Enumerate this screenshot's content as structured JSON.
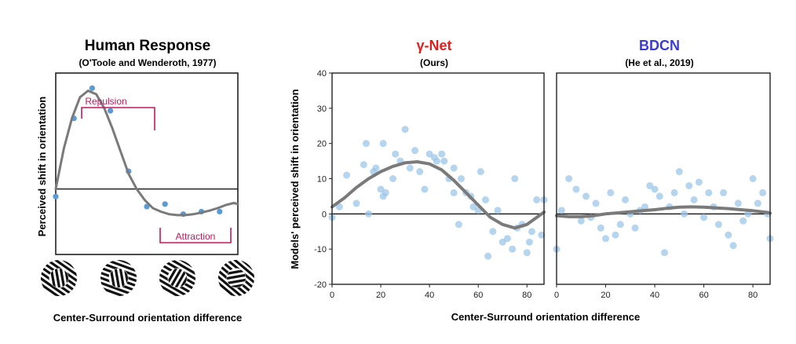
{
  "colors": {
    "gamma_title": "#e0201e",
    "bdcn_title": "#3b3bd6",
    "bracket": "#c2185b",
    "points_left": "#5b9bd5",
    "points_right": "#9cc5e8",
    "curve": "#7a7a7a"
  },
  "left_panel": {
    "title": "Human Response",
    "subtitle": "(O'Toole and Wenderoth, 1977)",
    "ylabel": "Perceived shift in orientation",
    "xlabel": "Center-Surround orientation difference",
    "repulsion_label": "Repulsion",
    "attraction_label": "Attraction",
    "stimulus_icons": [
      "stimulus-icon-small-difference",
      "stimulus-icon-medium-difference",
      "stimulus-icon-large-difference",
      "stimulus-icon-orthogonal-difference"
    ]
  },
  "right_figure": {
    "ylabel": "Models' perceived shift in orientation",
    "xlabel": "Center-Surround orientation difference"
  },
  "chart_data": [
    {
      "type": "scatter",
      "title": "Human Response",
      "subtitle": "(O'Toole and Wenderoth, 1977)",
      "ylabel": "Perceived shift in orientation",
      "xlabel": "Center-Surround orientation difference",
      "xlim": [
        0,
        90
      ],
      "ylim": [
        -1.3,
        2.3
      ],
      "grid": false,
      "points": {
        "x": [
          0,
          9,
          18,
          27,
          36,
          45,
          54,
          63,
          72,
          81
        ],
        "y": [
          -0.15,
          1.4,
          2.0,
          1.55,
          0.35,
          -0.35,
          -0.3,
          -0.5,
          -0.45,
          -0.45
        ]
      },
      "fit": {
        "x": [
          0,
          4,
          8,
          12,
          16,
          20,
          24,
          28,
          32,
          36,
          40,
          44,
          48,
          52,
          56,
          60,
          64,
          68,
          72,
          76,
          80,
          84,
          88,
          90
        ],
        "y": [
          0,
          0.8,
          1.4,
          1.82,
          1.95,
          1.88,
          1.6,
          1.2,
          0.75,
          0.3,
          0.0,
          -0.22,
          -0.38,
          -0.45,
          -0.5,
          -0.52,
          -0.52,
          -0.5,
          -0.47,
          -0.43,
          -0.38,
          -0.32,
          -0.28,
          -0.3
        ]
      },
      "annotations": [
        "Repulsion",
        "Attraction"
      ]
    },
    {
      "type": "scatter",
      "title": "γ-Net",
      "subtitle": "(Ours)",
      "ylabel": "Models' perceived shift in orientation",
      "xlabel": "Center-Surround orientation difference",
      "xlim": [
        0,
        87
      ],
      "ylim": [
        -20,
        40
      ],
      "xticks": [
        0,
        20,
        40,
        60,
        80
      ],
      "yticks": [
        -20,
        -10,
        0,
        10,
        20,
        30,
        40
      ],
      "grid": false,
      "points": {
        "x": [
          0,
          3,
          6,
          10,
          13,
          14,
          15,
          17,
          18,
          20,
          21,
          21,
          22,
          25,
          26,
          28,
          30,
          32,
          34,
          36,
          38,
          40,
          42,
          43,
          45,
          46,
          48,
          50,
          50,
          52,
          53,
          55,
          57,
          58,
          60,
          61,
          63,
          64,
          66,
          68,
          70,
          72,
          74,
          75,
          76,
          78,
          80,
          81,
          82,
          84,
          86,
          87
        ],
        "y": [
          -1,
          2,
          11,
          3,
          14,
          20,
          0,
          12,
          13,
          7,
          20,
          5,
          6,
          10,
          17,
          15,
          24,
          13,
          18,
          12,
          7,
          17,
          16,
          15,
          17,
          15,
          10,
          13,
          6,
          -3,
          10,
          6,
          5,
          2,
          1,
          12,
          4,
          -12,
          -5,
          1,
          -8,
          -7,
          -10,
          10,
          -4,
          -3,
          -11,
          -8,
          -5,
          4,
          -6,
          4
        ]
      },
      "fit": {
        "x": [
          0,
          5,
          10,
          15,
          20,
          25,
          30,
          35,
          40,
          45,
          50,
          55,
          60,
          65,
          70,
          75,
          80,
          85,
          87
        ],
        "y": [
          2,
          4.5,
          7.5,
          10,
          12,
          13.5,
          14.5,
          14.8,
          14.2,
          12.5,
          9.5,
          6,
          2.5,
          -1,
          -3,
          -4,
          -3,
          -0.5,
          0.5
        ]
      }
    },
    {
      "type": "scatter",
      "title": "BDCN",
      "subtitle": "(He et al., 2019)",
      "xlim": [
        0,
        87
      ],
      "ylim": [
        -20,
        40
      ],
      "xticks": [
        0,
        20,
        40,
        60,
        80
      ],
      "grid": false,
      "points": {
        "x": [
          0,
          2,
          5,
          8,
          10,
          12,
          14,
          16,
          18,
          20,
          22,
          24,
          26,
          28,
          30,
          32,
          34,
          36,
          38,
          40,
          42,
          44,
          46,
          48,
          50,
          52,
          54,
          56,
          58,
          60,
          62,
          64,
          66,
          68,
          70,
          72,
          74,
          76,
          78,
          80,
          82,
          84,
          86,
          87
        ],
        "y": [
          -10,
          1,
          10,
          7,
          -2,
          5,
          -1,
          3,
          -4,
          -7,
          6,
          -6,
          -3,
          4,
          0,
          -4,
          1,
          2,
          8,
          7,
          5,
          -11,
          2,
          6,
          12,
          0,
          8,
          4,
          9,
          -1,
          6,
          2,
          -3,
          6,
          -6,
          -9,
          3,
          -2,
          0,
          10,
          3,
          6,
          0,
          -7
        ]
      },
      "fit": {
        "x": [
          0,
          5,
          10,
          15,
          20,
          25,
          30,
          35,
          40,
          45,
          50,
          55,
          60,
          65,
          70,
          75,
          80,
          85,
          87
        ],
        "y": [
          -0.5,
          -0.8,
          -0.8,
          -0.5,
          0,
          0.3,
          0.6,
          0.9,
          1.2,
          1.6,
          1.9,
          2.0,
          1.9,
          1.7,
          1.5,
          1.2,
          0.9,
          0.5,
          0.2
        ]
      }
    }
  ]
}
